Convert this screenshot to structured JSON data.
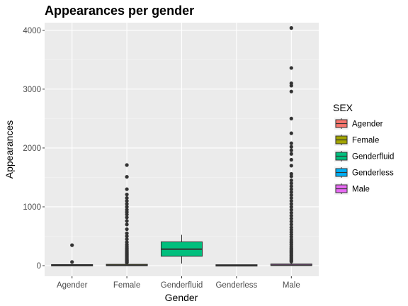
{
  "chart_data": {
    "type": "boxplot",
    "title": "Appearances per gender",
    "xlabel": "Gender",
    "ylabel": "Appearances",
    "ylim": [
      -180,
      4130
    ],
    "yticks": [
      0,
      1000,
      2000,
      3000,
      4000
    ],
    "grid": true,
    "legend": {
      "title": "SEX",
      "position": "right"
    },
    "categories": [
      "Agender",
      "Female",
      "Genderfluid",
      "Genderless",
      "Male"
    ],
    "series": [
      {
        "name": "Agender",
        "color": "#F8766D",
        "stats": {
          "min": 1,
          "q1": 2,
          "median": 6,
          "q3": 12,
          "max": 25
        },
        "outliers": [
          62,
          348
        ]
      },
      {
        "name": "Female",
        "color": "#A3A500",
        "stats": {
          "min": 1,
          "q1": 2,
          "median": 5,
          "q3": 20,
          "max": 45
        },
        "outliers": [
          50,
          60,
          70,
          80,
          90,
          100,
          115,
          130,
          145,
          160,
          175,
          190,
          205,
          220,
          240,
          260,
          280,
          300,
          330,
          360,
          400,
          450,
          500,
          550,
          620,
          700,
          760,
          820,
          870,
          910,
          950,
          1000,
          1050,
          1100,
          1150,
          1210,
          1300,
          1510,
          1710
        ]
      },
      {
        "name": "Genderfluid",
        "color": "#00BF7D",
        "stats": {
          "min": 35,
          "q1": 160,
          "median": 280,
          "q3": 405,
          "max": 525
        },
        "outliers": []
      },
      {
        "name": "Genderless",
        "color": "#00B0F6",
        "stats": {
          "min": 1,
          "q1": 1,
          "median": 3,
          "q3": 8,
          "max": 18
        },
        "outliers": []
      },
      {
        "name": "Male",
        "color": "#E76BF3",
        "stats": {
          "min": 1,
          "q1": 3,
          "median": 8,
          "q3": 28,
          "max": 60
        },
        "outliers": [
          70,
          85,
          100,
          120,
          140,
          160,
          180,
          200,
          220,
          240,
          260,
          280,
          300,
          330,
          360,
          390,
          420,
          450,
          490,
          530,
          570,
          610,
          650,
          700,
          750,
          800,
          850,
          900,
          950,
          1000,
          1050,
          1100,
          1150,
          1200,
          1250,
          1300,
          1350,
          1400,
          1450,
          1520,
          1560,
          1700,
          1800,
          1900,
          1960,
          2020,
          2080,
          2250,
          2500,
          2960,
          3060,
          3100,
          3360,
          4040
        ]
      }
    ]
  }
}
